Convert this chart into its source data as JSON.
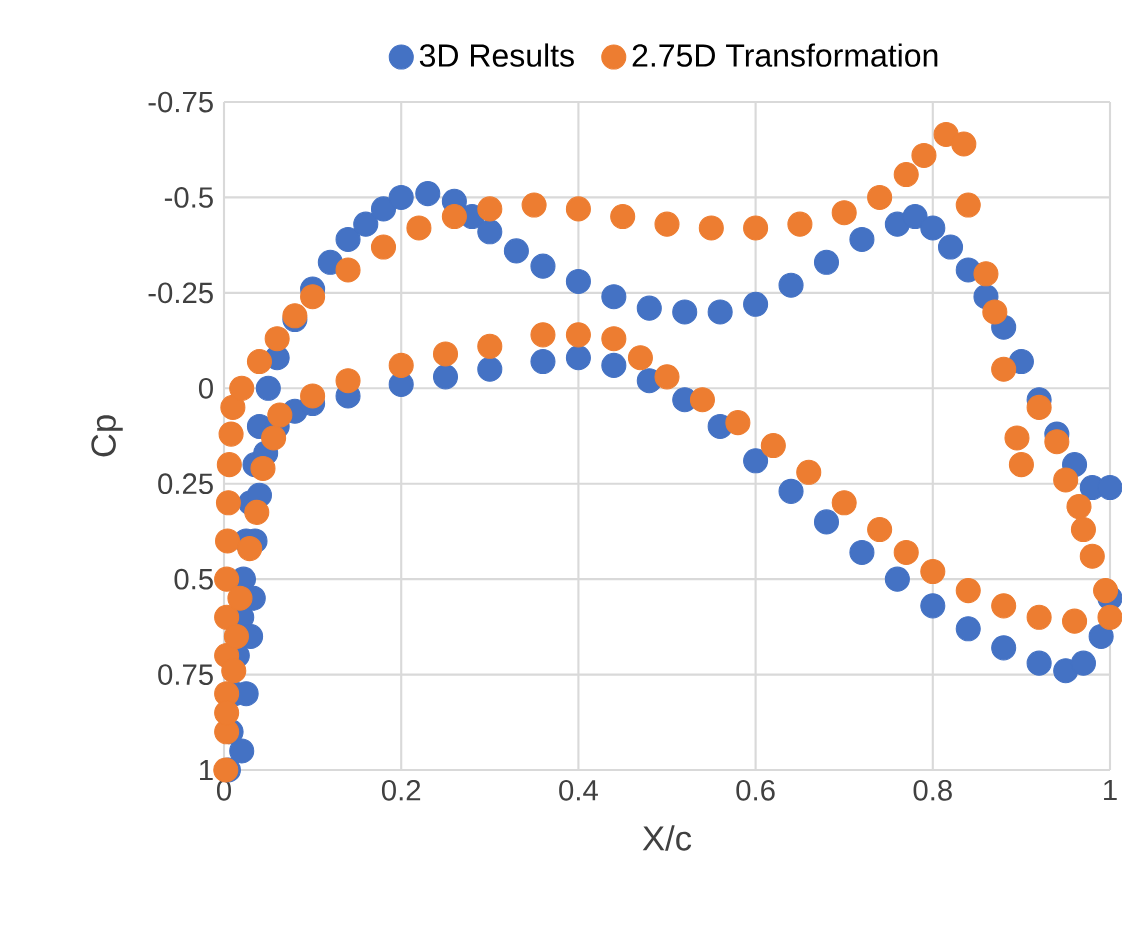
{
  "chart_data": {
    "type": "scatter",
    "xlabel": "X/c",
    "ylabel": "Cp",
    "xlim": [
      0,
      1
    ],
    "ylim": [
      1,
      -0.75
    ],
    "xticks": [
      0,
      0.2,
      0.4,
      0.6,
      0.8,
      1
    ],
    "yticks": [
      -0.75,
      -0.5,
      -0.25,
      0,
      0.25,
      0.5,
      0.75,
      1
    ],
    "grid": true,
    "legend": "top",
    "marker": "circle",
    "series": [
      {
        "name": "3D Results",
        "color": "#4472c4",
        "x": [
          0.005,
          0.008,
          0.012,
          0.015,
          0.02,
          0.022,
          0.025,
          0.03,
          0.035,
          0.04,
          0.05,
          0.06,
          0.08,
          0.1,
          0.12,
          0.14,
          0.16,
          0.18,
          0.2,
          0.23,
          0.26,
          0.28,
          0.3,
          0.33,
          0.36,
          0.4,
          0.44,
          0.48,
          0.52,
          0.56,
          0.6,
          0.64,
          0.68,
          0.72,
          0.76,
          0.78,
          0.8,
          0.82,
          0.84,
          0.86,
          0.88,
          0.9,
          0.92,
          0.94,
          0.96,
          0.98,
          1.0,
          0.02,
          0.025,
          0.03,
          0.033,
          0.035,
          0.04,
          0.047,
          0.06,
          0.08,
          0.1,
          0.14,
          0.2,
          0.25,
          0.3,
          0.36,
          0.4,
          0.44,
          0.48,
          0.52,
          0.56,
          0.6,
          0.64,
          0.68,
          0.72,
          0.76,
          0.8,
          0.84,
          0.88,
          0.92,
          0.95,
          0.97,
          0.99,
          1.0
        ],
        "values": [
          1.0,
          0.9,
          0.8,
          0.7,
          0.6,
          0.5,
          0.4,
          0.3,
          0.2,
          0.1,
          0.0,
          -0.08,
          -0.18,
          -0.26,
          -0.33,
          -0.39,
          -0.43,
          -0.47,
          -0.5,
          -0.51,
          -0.49,
          -0.45,
          -0.41,
          -0.36,
          -0.32,
          -0.28,
          -0.24,
          -0.21,
          -0.2,
          -0.2,
          -0.22,
          -0.27,
          -0.33,
          -0.39,
          -0.43,
          -0.45,
          -0.42,
          -0.37,
          -0.31,
          -0.24,
          -0.16,
          -0.07,
          0.03,
          0.12,
          0.2,
          0.26,
          0.26,
          0.95,
          0.8,
          0.65,
          0.55,
          0.4,
          0.28,
          0.17,
          0.1,
          0.06,
          0.04,
          0.02,
          -0.01,
          -0.03,
          -0.05,
          -0.07,
          -0.08,
          -0.06,
          -0.02,
          0.03,
          0.1,
          0.19,
          0.27,
          0.35,
          0.43,
          0.5,
          0.57,
          0.63,
          0.68,
          0.72,
          0.74,
          0.72,
          0.65,
          0.55
        ]
      },
      {
        "name": "2.75D Transformation",
        "color": "#ed7d31",
        "x": [
          0.002,
          0.003,
          0.003,
          0.003,
          0.003,
          0.003,
          0.004,
          0.005,
          0.006,
          0.008,
          0.01,
          0.02,
          0.04,
          0.06,
          0.08,
          0.1,
          0.14,
          0.18,
          0.22,
          0.26,
          0.3,
          0.35,
          0.4,
          0.45,
          0.5,
          0.55,
          0.6,
          0.65,
          0.7,
          0.74,
          0.77,
          0.79,
          0.815,
          0.835,
          0.84,
          0.86,
          0.87,
          0.88,
          0.92,
          0.895,
          0.9,
          0.94,
          0.95,
          0.965,
          0.97,
          0.98,
          0.995,
          1.0,
          0.044,
          0.037,
          0.029,
          0.018,
          0.014,
          0.011,
          0.003,
          0.056,
          0.063,
          0.1,
          0.14,
          0.2,
          0.25,
          0.3,
          0.36,
          0.4,
          0.44,
          0.47,
          0.5,
          0.54,
          0.58,
          0.62,
          0.66,
          0.7,
          0.74,
          0.77,
          0.8,
          0.84,
          0.88,
          0.92,
          0.96
        ],
        "values": [
          1.0,
          0.9,
          0.8,
          0.7,
          0.6,
          0.5,
          0.4,
          0.3,
          0.2,
          0.12,
          0.05,
          0.0,
          -0.07,
          -0.13,
          -0.19,
          -0.24,
          -0.31,
          -0.37,
          -0.42,
          -0.45,
          -0.47,
          -0.48,
          -0.47,
          -0.45,
          -0.43,
          -0.42,
          -0.42,
          -0.43,
          -0.46,
          -0.5,
          -0.56,
          -0.61,
          -0.665,
          -0.64,
          -0.48,
          -0.3,
          -0.2,
          -0.05,
          0.05,
          0.13,
          0.2,
          0.14,
          0.24,
          0.31,
          0.37,
          0.44,
          0.53,
          0.6,
          0.21,
          0.325,
          0.42,
          0.55,
          0.65,
          0.74,
          0.85,
          0.13,
          0.07,
          0.02,
          -0.02,
          -0.06,
          -0.09,
          -0.11,
          -0.14,
          -0.14,
          -0.13,
          -0.08,
          -0.03,
          0.03,
          0.09,
          0.15,
          0.22,
          0.3,
          0.37,
          0.43,
          0.48,
          0.53,
          0.57,
          0.6,
          0.61
        ]
      }
    ]
  }
}
